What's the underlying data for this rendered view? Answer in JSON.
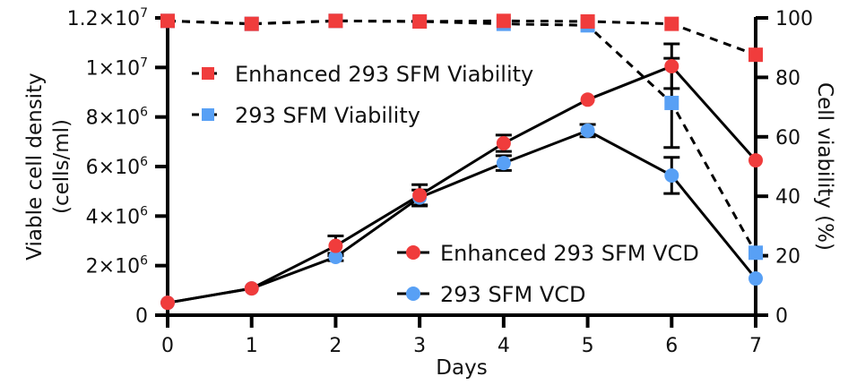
{
  "chart_data": {
    "type": "line",
    "title": "",
    "xlabel": "Days",
    "ylabel_left": [
      "Viable cell density",
      "(cells/ml)"
    ],
    "ylabel_right": "Cell viability (%)",
    "x": [
      0,
      1,
      2,
      3,
      4,
      5,
      6,
      7
    ],
    "x_tick_labels": [
      "0",
      "1",
      "2",
      "3",
      "4",
      "5",
      "6",
      "7"
    ],
    "xlim": [
      0,
      7
    ],
    "ylim_left": [
      0,
      12000000
    ],
    "ylim_right": [
      0,
      100
    ],
    "left_ticks": [
      {
        "value": 0,
        "mant": "0",
        "exp": ""
      },
      {
        "value": 2000000,
        "mant": "2×10",
        "exp": "6"
      },
      {
        "value": 4000000,
        "mant": "4×10",
        "exp": "6"
      },
      {
        "value": 6000000,
        "mant": "6×10",
        "exp": "6"
      },
      {
        "value": 8000000,
        "mant": "8×10",
        "exp": "6"
      },
      {
        "value": 10000000,
        "mant": "1×10",
        "exp": "7"
      },
      {
        "value": 12000000,
        "mant": "1.2×10",
        "exp": "7"
      }
    ],
    "right_ticks": [
      "0",
      "20",
      "40",
      "60",
      "80",
      "100"
    ],
    "right_tick_values": [
      0,
      20,
      40,
      60,
      80,
      100
    ],
    "grid": false,
    "series": [
      {
        "name": "Enhanced 293 SFM VCD",
        "axis": "left",
        "marker": "circle",
        "line": "solid",
        "color": "#f03c3c",
        "values": [
          500000,
          1080000,
          2800000,
          4840000,
          6940000,
          8700000,
          10050000,
          6250000
        ],
        "errors": [
          0,
          0,
          400000,
          430000,
          330000,
          0,
          900000,
          0
        ]
      },
      {
        "name": "293 SFM VCD",
        "axis": "left",
        "marker": "circle",
        "line": "solid",
        "color": "#58a0f5",
        "values": [
          500000,
          1080000,
          2350000,
          4750000,
          6140000,
          7450000,
          5640000,
          1480000
        ],
        "errors": [
          0,
          0,
          150000,
          300000,
          300000,
          250000,
          730000,
          0
        ]
      },
      {
        "name": "Enhanced 293 SFM Viability",
        "axis": "right",
        "marker": "square",
        "line": "dashed",
        "color": "#f03c3c",
        "values": [
          99,
          98,
          99,
          98.8,
          99,
          98.8,
          98,
          87.6
        ],
        "errors": [
          0,
          0,
          0,
          0,
          0,
          0,
          0,
          0
        ]
      },
      {
        "name": "293 SFM Viability",
        "axis": "right",
        "marker": "square",
        "line": "dashed",
        "color": "#58a0f5",
        "values": [
          99,
          98,
          99,
          98.8,
          98,
          97.5,
          71.4,
          21
        ],
        "errors": [
          0,
          0,
          0,
          0,
          0,
          0,
          15,
          0
        ]
      }
    ],
    "legends": [
      {
        "position": "top-left",
        "entries": [
          "Enhanced 293 SFM Viability",
          "293 SFM Viability"
        ]
      },
      {
        "position": "bottom-right",
        "entries": [
          "Enhanced 293 SFM VCD",
          "293 SFM VCD"
        ]
      }
    ]
  }
}
